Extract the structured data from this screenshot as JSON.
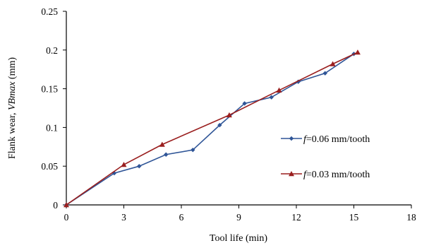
{
  "chart_data": {
    "type": "line",
    "xlabel": "Tool life (min)",
    "ylabel": {
      "prefix": "Flank wear,  ",
      "variable": "VBmax",
      "suffix": " (mm)"
    },
    "xlim": [
      0,
      18
    ],
    "ylim": [
      0,
      0.25
    ],
    "xticks": [
      "0",
      "3",
      "6",
      "9",
      "12",
      "15",
      "18"
    ],
    "yticks": [
      "0",
      "0.05",
      "0.1",
      "0.15",
      "0.2",
      "0.25"
    ],
    "grid": false,
    "legend_position": "right",
    "series": [
      {
        "name": "f=0.06 mm/tooth",
        "name_symbol": "f",
        "name_rest": "=0.06 mm/tooth",
        "color": "#2f5597",
        "marker": "diamond",
        "points": [
          [
            0,
            0
          ],
          [
            2.5,
            0.041
          ],
          [
            3.8,
            0.05
          ],
          [
            5.2,
            0.065
          ],
          [
            6.6,
            0.071
          ],
          [
            8,
            0.103
          ],
          [
            9.3,
            0.131
          ],
          [
            10.7,
            0.139
          ],
          [
            12.1,
            0.159
          ],
          [
            13.5,
            0.17
          ],
          [
            15,
            0.195
          ]
        ]
      },
      {
        "name": "f=0.03 mm/tooth",
        "name_symbol": "f",
        "name_rest": "=0.03 mm/tooth",
        "color": "#9a1f1f",
        "marker": "triangle",
        "points": [
          [
            0,
            0
          ],
          [
            3,
            0.052
          ],
          [
            5,
            0.078
          ],
          [
            8.5,
            0.116
          ],
          [
            11.1,
            0.148
          ],
          [
            13.9,
            0.182
          ],
          [
            15.2,
            0.197
          ]
        ]
      }
    ]
  }
}
